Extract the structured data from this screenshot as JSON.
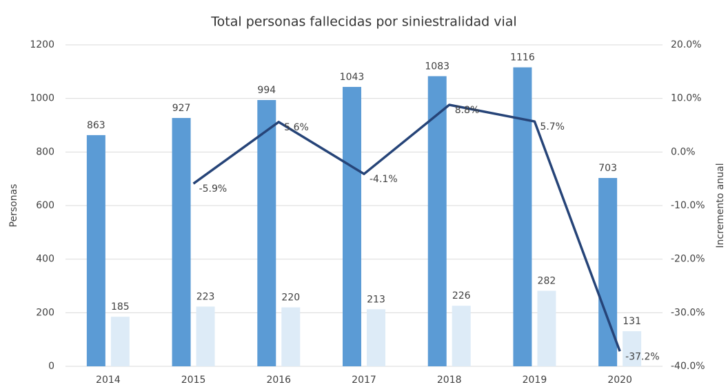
{
  "chart_data": {
    "type": "bar",
    "title": "Total personas fallecidas por siniestralidad vial",
    "y_label": "Personas",
    "y2_label": "Incremento anual",
    "categories": [
      "2014",
      "2015",
      "2016",
      "2017",
      "2018",
      "2019",
      "2020"
    ],
    "series": [
      {
        "type": "bar",
        "color": "#5b9bd5",
        "values": [
          863,
          927,
          994,
          1043,
          1083,
          1116,
          703
        ]
      },
      {
        "type": "bar",
        "color": "#ddebf7",
        "values": [
          185,
          223,
          220,
          213,
          226,
          282,
          131
        ]
      },
      {
        "type": "line",
        "axis": "y2",
        "color": "#264478",
        "values": [
          null,
          -5.9,
          5.6,
          -4.1,
          8.8,
          5.7,
          -37.2
        ],
        "value_labels": [
          null,
          "-5.9%",
          "5.6%",
          "-4.1%",
          "8.8%",
          "5.7%",
          "-37.2%"
        ]
      }
    ],
    "ylim": [
      0,
      1200
    ],
    "yticks": [
      0,
      200,
      400,
      600,
      800,
      1000,
      1200
    ],
    "y2lim": [
      -40,
      20
    ],
    "y2ticks": [
      {
        "value": -40,
        "label": "-40.0%"
      },
      {
        "value": -30,
        "label": "-30.0%"
      },
      {
        "value": -20,
        "label": "-20.0%"
      },
      {
        "value": -10,
        "label": "-10.0%"
      },
      {
        "value": 0,
        "label": "0.0%"
      },
      {
        "value": 10,
        "label": "10.0%"
      },
      {
        "value": 20,
        "label": "20.0%"
      }
    ],
    "grid": true
  }
}
